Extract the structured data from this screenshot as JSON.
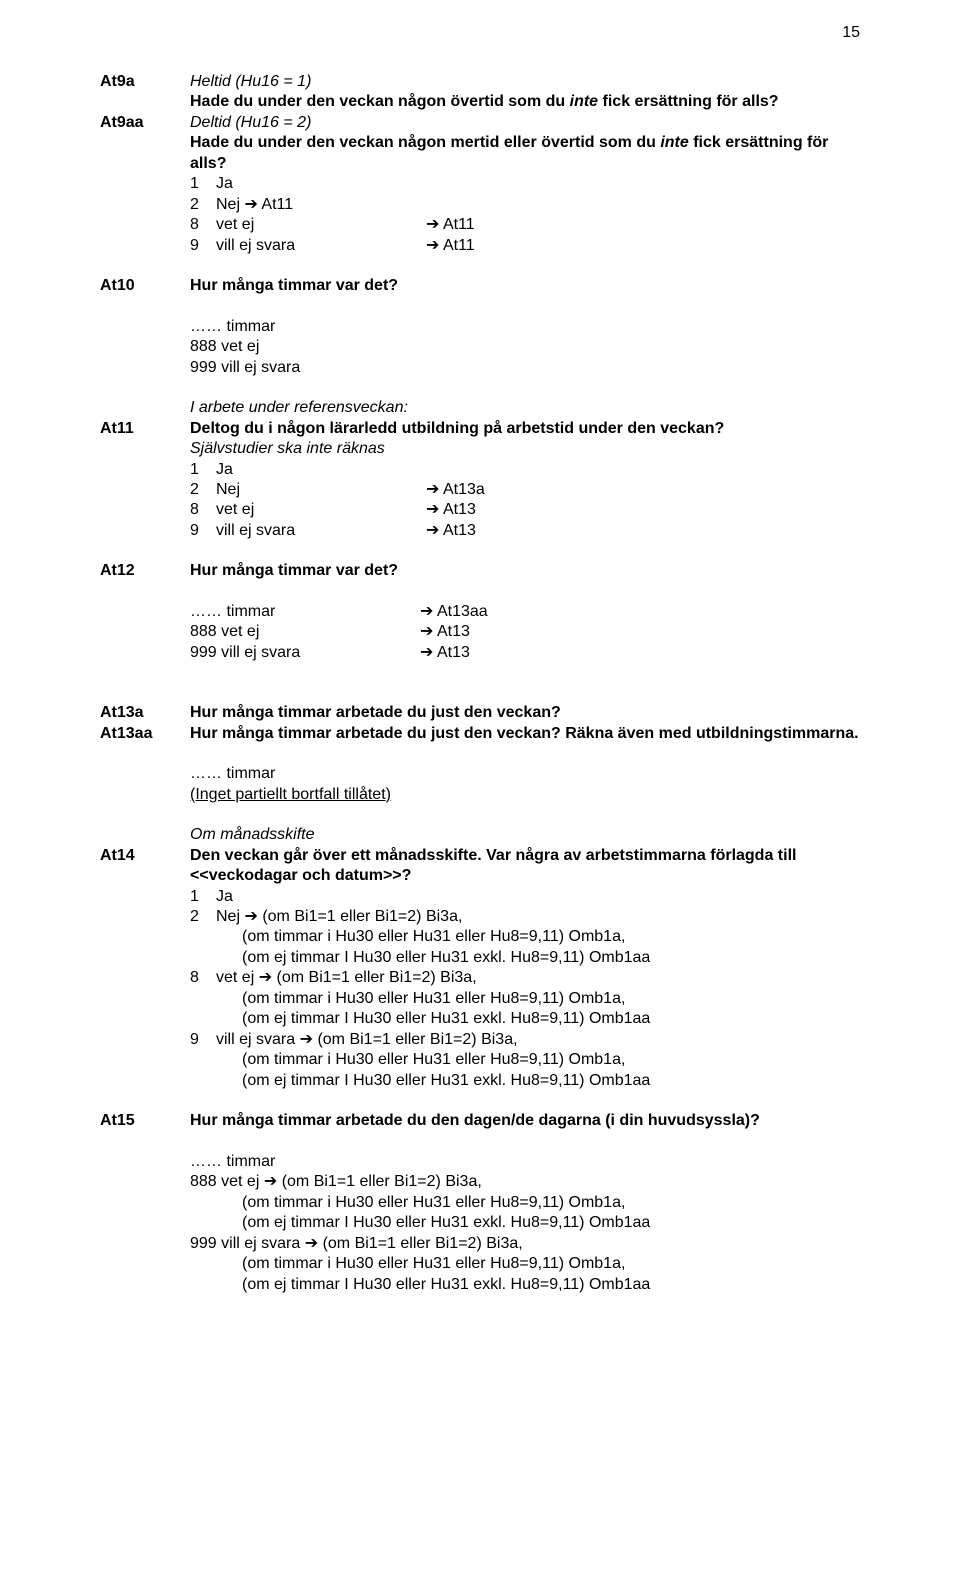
{
  "pageNumber": "15",
  "at9_label": "At9a",
  "at9_intro_italic": "Heltid (Hu16 = 1)",
  "at9_q_pre": "Hade du under den veckan någon övertid som du ",
  "at9_q_italic": "inte",
  "at9_q_post": " fick ersättning för alls?",
  "at9aa_label": "At9aa",
  "at9aa_intro_italic": "Deltid (Hu16 = 2)",
  "at9aa_q_pre": "Hade du under den veckan någon mertid eller övertid som du ",
  "at9aa_q_italic": "inte",
  "at9aa_q_post": " fick ersättning för alls?",
  "opt_1": "1",
  "opt_2": "2",
  "opt_8": "8",
  "opt_9": "9",
  "ja": "Ja",
  "nej": "Nej",
  "vetej": "vet ej",
  "villes": "vill ej svara",
  "nej_arrow_at11": "Nej ➔ At11",
  "arrow_at11": "➔ At11",
  "at10_label": "At10",
  "at10_q": "Hur många timmar var det?",
  "timmar_dots": "…… timmar",
  "pfx_888": "888  vet ej",
  "pfx_999": "999  vill ej svara",
  "at11_label": "At11",
  "at11_intro_italic": "I arbete under referensveckan:",
  "at11_q": "Deltog du i någon lärarledd utbildning på arbetstid under den veckan?",
  "at11_sub_italic": "Självstudier ska inte räknas",
  "arrow_at13a": "➔ At13a",
  "arrow_at13": "➔ At13",
  "at12_label": "At12",
  "at12_q": "Hur många timmar var det?",
  "arrow_at13aa": "➔ At13aa",
  "at13a_label": "At13a",
  "at13a_q": "Hur många timmar arbetade du just den veckan?",
  "at13aa_label": "At13aa",
  "at13aa_q": "Hur många timmar arbetade du just den veckan? Räkna även med utbildningstimmarna.",
  "inget_partiellt": "(Inget partiellt bortfall tillåtet)",
  "at14_label": "At14",
  "at14_intro_italic": "Om månadsskifte",
  "at14_q": "Den veckan går över ett månadsskifte. Var några av arbetstimmarna förlagda till <<veckodagar och datum>>?",
  "at14_2_pre": "Nej ➔ ",
  "at14_8_pre": "vet ej ➔ ",
  "at14_9_pre": "vill ej svara ➔ ",
  "cond1": "(om Bi1=1 eller Bi1=2) Bi3a,",
  "cond2": "(om timmar i Hu30 eller Hu31 eller Hu8=9,11) Omb1a,",
  "cond3": "(om ej timmar I Hu30 eller Hu31 exkl. Hu8=9,11) Omb1aa",
  "at15_label": "At15",
  "at15_q": "Hur många timmar arbetade du den dagen/de dagarna (i din huvudsyssla)?",
  "at15_888_pre": "888  vet ej ➔ ",
  "at15_999_pre": "999  vill ej svara ➔ "
}
